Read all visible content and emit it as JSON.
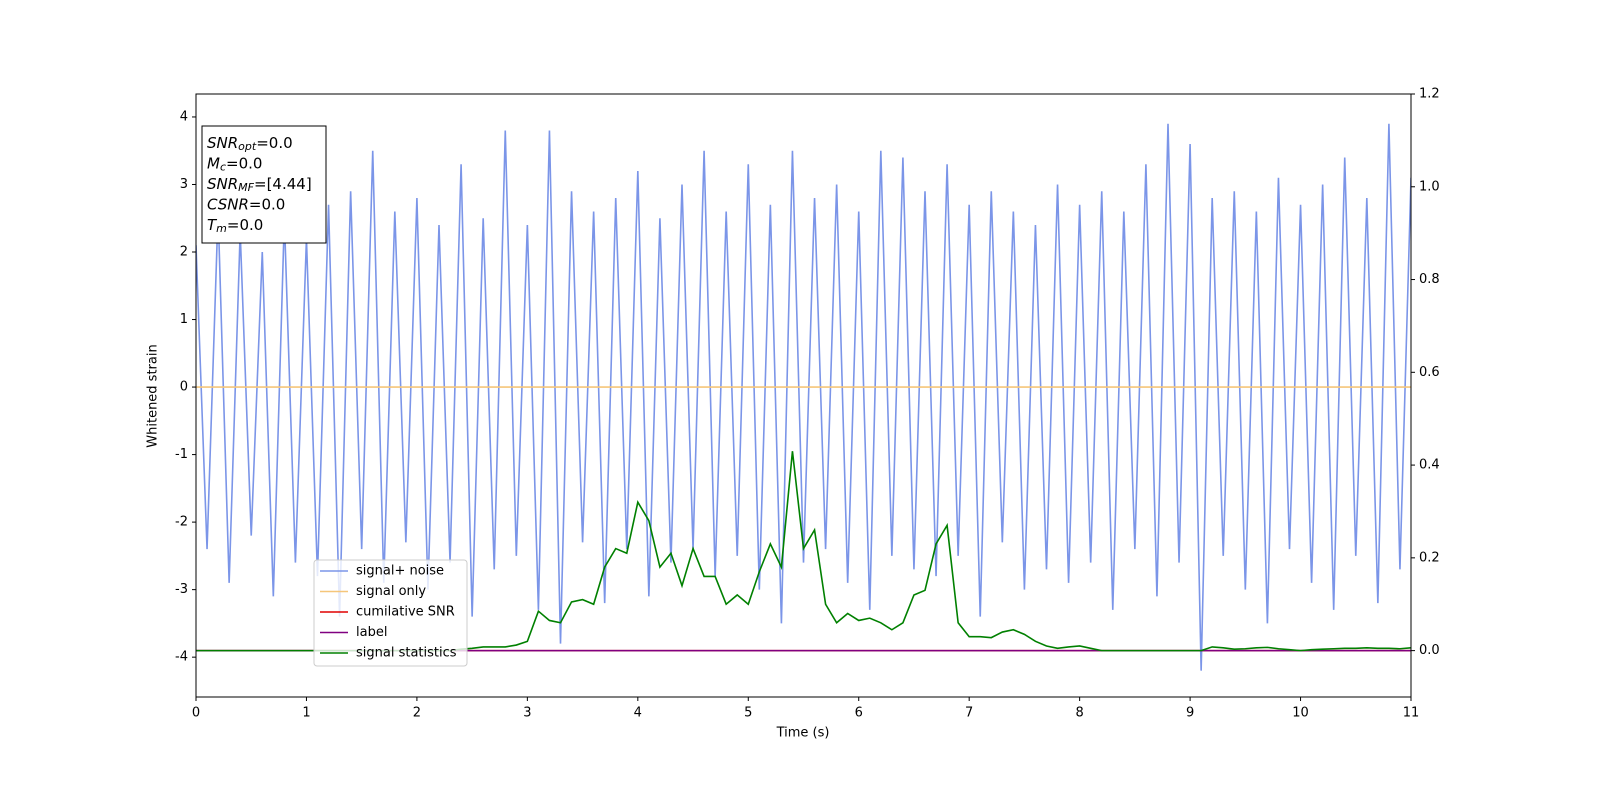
{
  "chart_data": {
    "type": "line",
    "xlabel": "Time (s)",
    "ylabel": "Whitened strain",
    "xlim": [
      0,
      11
    ],
    "xticks": [
      0,
      1,
      2,
      3,
      4,
      5,
      6,
      7,
      8,
      9,
      10,
      11
    ],
    "ylim": [
      -4.59,
      4.34
    ],
    "yticks": [
      -4,
      -3,
      -2,
      -1,
      0,
      1,
      2,
      3,
      4
    ],
    "y2lim": [
      -0.1,
      1.2
    ],
    "y2ticks": [
      {
        "value": 0,
        "label": "0.0"
      },
      {
        "value": 0.2,
        "label": "0.2"
      },
      {
        "value": 0.4,
        "label": "0.4"
      },
      {
        "value": 0.6,
        "label": "0.6"
      },
      {
        "value": 0.8,
        "label": "0.8"
      },
      {
        "value": 1,
        "label": "1.0"
      },
      {
        "value": 1.2,
        "label": "1.2"
      }
    ],
    "annotations": [
      {
        "symbol": "SNR",
        "sub": "opt",
        "rest": "=0.0"
      },
      {
        "symbol": "M",
        "sub": "c",
        "rest": "=0.0"
      },
      {
        "symbol": "SNR",
        "sub": "MF",
        "rest": "=[4.44]"
      },
      {
        "symbol": "CSNR",
        "sub": null,
        "rest": "=0.0"
      },
      {
        "symbol": "T",
        "sub": "m",
        "rest": "=0.0"
      }
    ],
    "legend": "lower left",
    "x": [
      0,
      0.1,
      0.2,
      0.3,
      0.4,
      0.5,
      0.6,
      0.7,
      0.8,
      0.9,
      1,
      1.1,
      1.2,
      1.3,
      1.4,
      1.5,
      1.6,
      1.7,
      1.8,
      1.9,
      2,
      2.1,
      2.2,
      2.3,
      2.4,
      2.5,
      2.6,
      2.7,
      2.8,
      2.9,
      3,
      3.1,
      3.2,
      3.3,
      3.4,
      3.5,
      3.6,
      3.7,
      3.8,
      3.9,
      4,
      4.1,
      4.2,
      4.3,
      4.4,
      4.5,
      4.6,
      4.7,
      4.8,
      4.9,
      5,
      5.1,
      5.2,
      5.3,
      5.4,
      5.5,
      5.6,
      5.7,
      5.8,
      5.9,
      6,
      6.1,
      6.2,
      6.3,
      6.4,
      6.5,
      6.6,
      6.7,
      6.8,
      6.9,
      7,
      7.1,
      7.2,
      7.3,
      7.4,
      7.5,
      7.6,
      7.7,
      7.8,
      7.9,
      8,
      8.1,
      8.2,
      8.3,
      8.4,
      8.5,
      8.6,
      8.7,
      8.8,
      8.9,
      9,
      9.1,
      9.2,
      9.3,
      9.4,
      9.5,
      9.6,
      9.7,
      9.8,
      9.9,
      10,
      10.1,
      10.2,
      10.3,
      10.4,
      10.5,
      10.6,
      10.7,
      10.8,
      10.9,
      11
    ],
    "series": [
      {
        "name": "signal+ noise",
        "color": "#7b95e8",
        "axis": "y",
        "values": [
          2.1,
          -2.4,
          2.6,
          -2.9,
          2.3,
          -2.2,
          2.0,
          -3.1,
          2.5,
          -2.6,
          2.2,
          -2.8,
          2.7,
          -3.4,
          2.9,
          -2.4,
          3.5,
          -2.9,
          2.6,
          -2.3,
          2.8,
          -3.0,
          2.4,
          -2.6,
          3.3,
          -3.4,
          2.5,
          -2.7,
          3.8,
          -2.5,
          2.4,
          -3.3,
          3.8,
          -3.8,
          2.9,
          -2.3,
          2.6,
          -3.2,
          2.8,
          -2.4,
          3.2,
          -3.1,
          2.5,
          -2.6,
          3.0,
          -2.4,
          3.5,
          -2.8,
          2.6,
          -2.5,
          3.3,
          -3.0,
          2.7,
          -3.5,
          3.5,
          -2.6,
          2.8,
          -2.4,
          3.0,
          -2.9,
          2.6,
          -3.3,
          3.5,
          -2.5,
          3.4,
          -2.7,
          2.9,
          -2.8,
          3.3,
          -2.5,
          2.7,
          -3.4,
          2.9,
          -2.3,
          2.6,
          -3.0,
          2.4,
          -2.7,
          3.0,
          -2.9,
          2.7,
          -2.6,
          2.9,
          -3.3,
          2.6,
          -2.4,
          3.3,
          -3.1,
          3.9,
          -2.6,
          3.6,
          -4.2,
          2.8,
          -2.5,
          2.9,
          -3.0,
          2.6,
          -3.5,
          3.1,
          -2.4,
          2.7,
          -2.9,
          3.0,
          -3.3,
          3.4,
          -2.5,
          2.8,
          -3.2,
          3.9,
          -2.7,
          3.1
        ]
      },
      {
        "name": "signal only",
        "color": "#f5c67a",
        "axis": "y",
        "x": [
          0,
          11
        ],
        "values": [
          0,
          0
        ]
      },
      {
        "name": "cumilative SNR",
        "color": "#e00000",
        "axis": "y2",
        "x": [
          0,
          11
        ],
        "values": [
          0,
          0
        ]
      },
      {
        "name": "label",
        "color": "#800080",
        "axis": "y2",
        "x": [
          0,
          11
        ],
        "values": [
          0,
          0
        ]
      },
      {
        "name": "signal statistics",
        "color": "#008000",
        "axis": "y2",
        "values": [
          0,
          0,
          0,
          0,
          0,
          0,
          0,
          0,
          0,
          0,
          0,
          0,
          0,
          0,
          0,
          0,
          0,
          0,
          0,
          0,
          0,
          0,
          0,
          0,
          0.003,
          0.005,
          0.008,
          0.008,
          0.008,
          0.012,
          0.02,
          0.085,
          0.065,
          0.06,
          0.105,
          0.11,
          0.1,
          0.18,
          0.22,
          0.21,
          0.32,
          0.28,
          0.18,
          0.21,
          0.14,
          0.22,
          0.16,
          0.16,
          0.1,
          0.12,
          0.1,
          0.17,
          0.23,
          0.18,
          0.43,
          0.22,
          0.26,
          0.1,
          0.06,
          0.08,
          0.065,
          0.07,
          0.06,
          0.045,
          0.06,
          0.12,
          0.13,
          0.23,
          0.27,
          0.06,
          0.03,
          0.03,
          0.028,
          0.04,
          0.045,
          0.035,
          0.02,
          0.01,
          0.005,
          0.008,
          0.01,
          0.005,
          0,
          0,
          0,
          0,
          0,
          0,
          0,
          0,
          0,
          0,
          0.008,
          0.006,
          0.003,
          0.004,
          0.006,
          0.007,
          0.004,
          0.002,
          0,
          0.002,
          0.003,
          0.004,
          0.005,
          0.005,
          0.006,
          0.005,
          0.005,
          0.004,
          0.006
        ]
      }
    ]
  }
}
